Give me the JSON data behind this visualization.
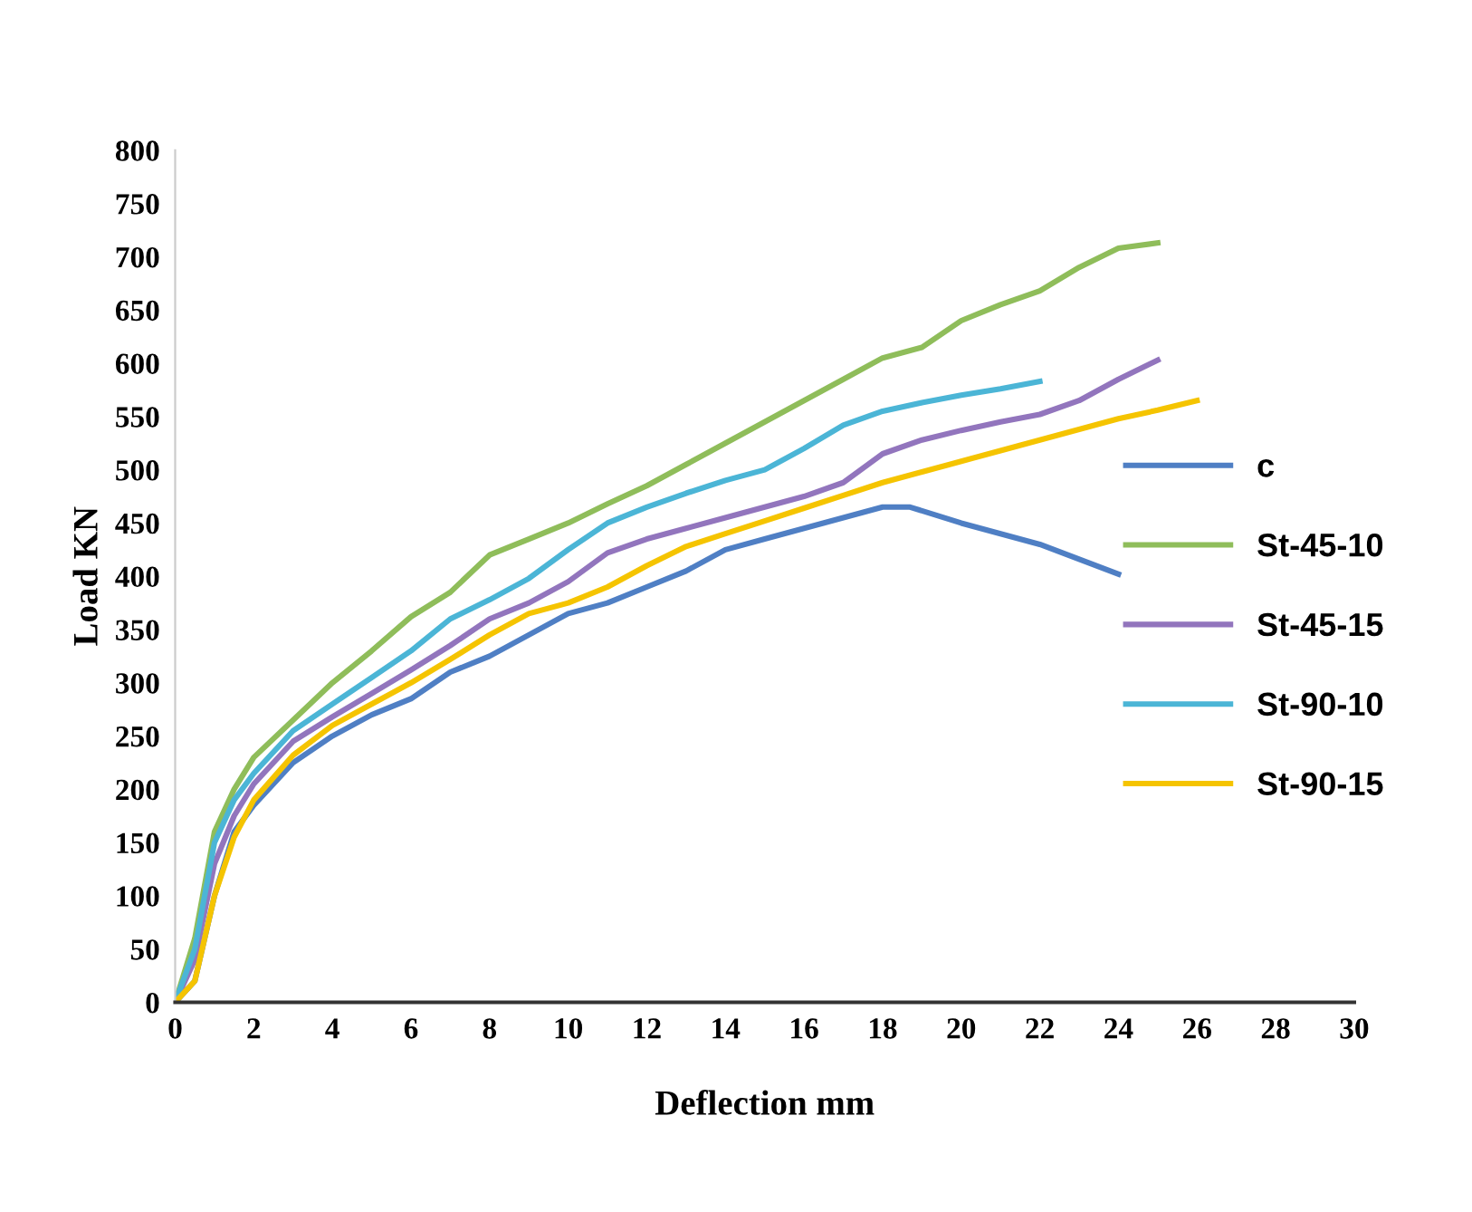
{
  "chart_data": {
    "type": "line",
    "xlabel": "Deflection mm",
    "ylabel": "Load KN",
    "xlim": [
      0,
      30
    ],
    "xticks": [
      0,
      2,
      4,
      6,
      8,
      10,
      12,
      14,
      16,
      18,
      20,
      22,
      24,
      26,
      28,
      30
    ],
    "ylim": [
      0,
      800
    ],
    "yticks": [
      0,
      50,
      100,
      150,
      200,
      250,
      300,
      350,
      400,
      450,
      500,
      550,
      600,
      650,
      700,
      750,
      800
    ],
    "grid": false,
    "legend": "right",
    "marker": "none",
    "line_style": "solid",
    "series": [
      {
        "name": "c",
        "color": "#4f7fc4",
        "x": [
          0,
          0.5,
          1,
          1.5,
          2,
          3,
          4,
          5,
          6,
          7,
          8,
          9,
          10,
          11,
          12,
          13,
          14,
          15,
          16,
          17,
          18,
          18.7,
          20,
          22,
          24
        ],
        "values": [
          0,
          20,
          100,
          160,
          185,
          225,
          250,
          270,
          285,
          310,
          325,
          345,
          365,
          375,
          390,
          405,
          425,
          435,
          445,
          455,
          465,
          465,
          450,
          430,
          402
        ]
      },
      {
        "name": "St-45-10",
        "color": "#8fbd5a",
        "x": [
          0,
          0.5,
          1,
          1.5,
          2,
          3,
          4,
          5,
          6,
          7,
          8,
          9,
          10,
          11,
          12,
          13,
          14,
          15,
          16,
          17,
          18,
          19,
          20,
          21,
          22,
          23,
          24,
          25
        ],
        "values": [
          0,
          60,
          160,
          200,
          230,
          265,
          300,
          330,
          362,
          385,
          420,
          435,
          450,
          468,
          485,
          505,
          525,
          545,
          565,
          585,
          605,
          615,
          640,
          655,
          668,
          690,
          708,
          713
        ]
      },
      {
        "name": "St-45-15",
        "color": "#9275bd",
        "x": [
          0,
          0.5,
          1,
          1.5,
          2,
          3,
          4,
          5,
          6,
          7,
          8,
          9,
          10,
          11,
          12,
          13,
          14,
          15,
          16,
          17,
          18,
          19,
          20,
          21,
          22,
          23,
          24,
          25
        ],
        "values": [
          0,
          40,
          130,
          175,
          205,
          245,
          268,
          290,
          312,
          335,
          360,
          375,
          395,
          422,
          435,
          445,
          455,
          465,
          475,
          488,
          515,
          528,
          537,
          545,
          552,
          565,
          585,
          603
        ]
      },
      {
        "name": "St-90-10",
        "color": "#4bb5d6",
        "x": [
          0,
          0.5,
          1,
          1.5,
          2,
          3,
          4,
          5,
          6,
          7,
          8,
          9,
          10,
          11,
          12,
          13,
          14,
          15,
          16,
          17,
          18,
          19,
          20,
          21,
          22
        ],
        "values": [
          0,
          50,
          150,
          190,
          215,
          255,
          280,
          305,
          330,
          360,
          378,
          398,
          425,
          450,
          465,
          478,
          490,
          500,
          520,
          542,
          555,
          563,
          570,
          576,
          583
        ]
      },
      {
        "name": "St-90-15",
        "color": "#f5c400",
        "x": [
          0,
          0.5,
          1,
          1.5,
          2,
          3,
          4,
          5,
          6,
          7,
          8,
          9,
          10,
          11,
          12,
          13,
          14,
          15,
          16,
          17,
          18,
          19,
          20,
          21,
          22,
          23,
          24,
          25,
          26
        ],
        "values": [
          0,
          20,
          100,
          155,
          190,
          232,
          260,
          280,
          300,
          322,
          345,
          365,
          375,
          390,
          410,
          428,
          440,
          452,
          464,
          476,
          488,
          498,
          508,
          518,
          528,
          538,
          548,
          556,
          565
        ]
      }
    ]
  }
}
